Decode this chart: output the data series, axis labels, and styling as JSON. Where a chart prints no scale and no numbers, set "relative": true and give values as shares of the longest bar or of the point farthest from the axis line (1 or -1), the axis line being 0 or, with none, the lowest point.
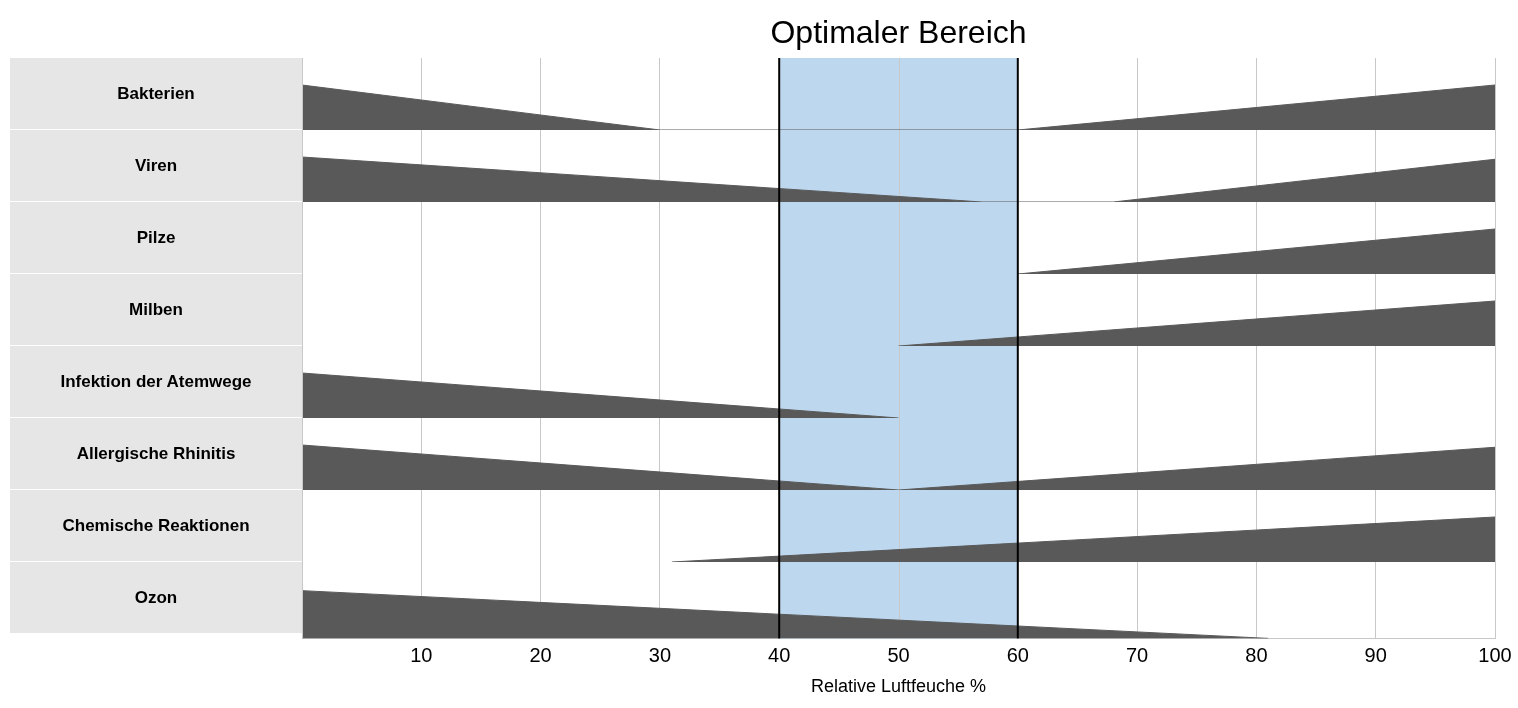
{
  "chart_data": [
    {
      "type": "area",
      "ylabel": "Bakterien",
      "relative": true,
      "xlim": [
        0,
        100
      ],
      "xticks": [
        10,
        20,
        30,
        40,
        50,
        60,
        70,
        80,
        90,
        100
      ],
      "grid": "x",
      "tick_labels": false,
      "bands": [
        {
          "axis": "x",
          "from": 40,
          "to": 60,
          "label": "Optimaler Bereich",
          "color": "#bdd7ee"
        }
      ],
      "series": [
        {
          "color": "#595959",
          "x": [
            0,
            30,
            60,
            100
          ],
          "values": [
            1,
            0,
            0,
            1
          ]
        }
      ]
    },
    {
      "type": "area",
      "ylabel": "Viren",
      "relative": true,
      "xlim": [
        0,
        100
      ],
      "xticks": [
        10,
        20,
        30,
        40,
        50,
        60,
        70,
        80,
        90,
        100
      ],
      "grid": "x",
      "tick_labels": false,
      "bands": [
        {
          "axis": "x",
          "from": 40,
          "to": 60,
          "color": "#bdd7ee"
        }
      ],
      "series": [
        {
          "color": "#595959",
          "x": [
            0,
            57,
            68,
            100
          ],
          "values": [
            1,
            0,
            0,
            0.95
          ]
        }
      ]
    },
    {
      "type": "area",
      "ylabel": "Pilze",
      "relative": true,
      "xlim": [
        0,
        100
      ],
      "xticks": [
        10,
        20,
        30,
        40,
        50,
        60,
        70,
        80,
        90,
        100
      ],
      "grid": "x",
      "tick_labels": false,
      "bands": [
        {
          "axis": "x",
          "from": 40,
          "to": 60,
          "color": "#bdd7ee"
        }
      ],
      "series": [
        {
          "color": "#595959",
          "x": [
            60,
            100
          ],
          "values": [
            0,
            1
          ]
        }
      ]
    },
    {
      "type": "area",
      "ylabel": "Milben",
      "relative": true,
      "xlim": [
        0,
        100
      ],
      "xticks": [
        10,
        20,
        30,
        40,
        50,
        60,
        70,
        80,
        90,
        100
      ],
      "grid": "x",
      "tick_labels": false,
      "bands": [
        {
          "axis": "x",
          "from": 40,
          "to": 60,
          "color": "#bdd7ee"
        }
      ],
      "series": [
        {
          "color": "#595959",
          "x": [
            50,
            100
          ],
          "values": [
            0,
            1
          ]
        }
      ]
    },
    {
      "type": "area",
      "ylabel": "Infektion der Atemwege",
      "relative": true,
      "xlim": [
        0,
        100
      ],
      "xticks": [
        10,
        20,
        30,
        40,
        50,
        60,
        70,
        80,
        90,
        100
      ],
      "grid": "x",
      "tick_labels": false,
      "bands": [
        {
          "axis": "x",
          "from": 40,
          "to": 60,
          "color": "#bdd7ee"
        }
      ],
      "series": [
        {
          "color": "#595959",
          "x": [
            0,
            50
          ],
          "values": [
            1,
            0
          ]
        }
      ]
    },
    {
      "type": "area",
      "ylabel": "Allergische Rhinitis",
      "relative": true,
      "xlim": [
        0,
        100
      ],
      "xticks": [
        10,
        20,
        30,
        40,
        50,
        60,
        70,
        80,
        90,
        100
      ],
      "grid": "x",
      "tick_labels": false,
      "bands": [
        {
          "axis": "x",
          "from": 40,
          "to": 60,
          "color": "#bdd7ee"
        }
      ],
      "series": [
        {
          "color": "#595959",
          "x": [
            0,
            50,
            100
          ],
          "values": [
            1,
            0,
            0.95
          ]
        }
      ]
    },
    {
      "type": "area",
      "ylabel": "Chemische Reaktionen",
      "relative": true,
      "xlim": [
        0,
        100
      ],
      "xticks": [
        10,
        20,
        30,
        40,
        50,
        60,
        70,
        80,
        90,
        100
      ],
      "grid": "x",
      "tick_labels": false,
      "bands": [
        {
          "axis": "x",
          "from": 40,
          "to": 60,
          "color": "#bdd7ee"
        }
      ],
      "series": [
        {
          "color": "#595959",
          "x": [
            31,
            100
          ],
          "values": [
            0,
            1
          ]
        }
      ]
    },
    {
      "type": "area",
      "ylabel": "Ozon",
      "xlabel": "Relative Luftfeuche %",
      "relative": true,
      "xlim": [
        0,
        100
      ],
      "xticks": [
        10,
        20,
        30,
        40,
        50,
        60,
        70,
        80,
        90,
        100
      ],
      "grid": "x",
      "tick_labels": "x",
      "bands": [
        {
          "axis": "x",
          "from": 40,
          "to": 60,
          "color": "#bdd7ee"
        }
      ],
      "series": [
        {
          "color": "#595959",
          "x": [
            0,
            81
          ],
          "values": [
            1,
            0
          ]
        }
      ]
    }
  ]
}
